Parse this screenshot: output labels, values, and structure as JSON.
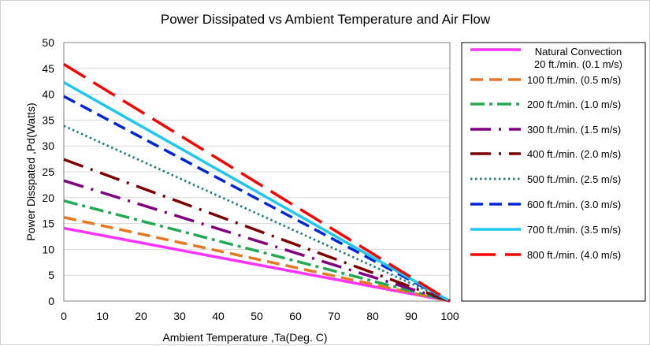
{
  "chart_data": {
    "type": "line",
    "title": "Power Dissipated vs Ambient Temperature and Air Flow",
    "xlabel": "Ambient Temperature ,Ta(Deg. C)",
    "ylabel": "Power Disspated ,Pd(Watts)",
    "xlim": [
      0,
      100
    ],
    "ylim": [
      0,
      50
    ],
    "xticks": [
      0,
      10,
      20,
      30,
      40,
      50,
      60,
      70,
      80,
      90,
      100
    ],
    "yticks": [
      0,
      5,
      10,
      15,
      20,
      25,
      30,
      35,
      40,
      45,
      50
    ],
    "grid": "horizontal",
    "legend_position": "right",
    "x": [
      0,
      100
    ],
    "series": [
      {
        "name": "Natural Convection",
        "name_line2": "20 ft./min. (0.1 m/s)",
        "values": [
          14.1,
          0
        ],
        "color": "#ff33ff",
        "style": "solid",
        "icon": "solid-line-icon"
      },
      {
        "name": "100 ft./min. (0.5 m/s)",
        "values": [
          16.2,
          0
        ],
        "color": "#e87722",
        "style": "dash",
        "icon": "dashed-line-icon"
      },
      {
        "name": "200 ft./min. (1.0 m/s)",
        "values": [
          19.4,
          0
        ],
        "color": "#22aa55",
        "style": "dashdot",
        "icon": "dash-dot-line-icon"
      },
      {
        "name": "300 ft./min. (1.5 m/s)",
        "values": [
          23.3,
          0
        ],
        "color": "#800080",
        "style": "longdashdot",
        "icon": "long-dash-dot-line-icon"
      },
      {
        "name": "400 ft./min. (2.0 m/s)",
        "values": [
          27.4,
          0
        ],
        "color": "#7f0000",
        "style": "longdashdot",
        "icon": "long-dash-dot-line-icon"
      },
      {
        "name": "500 ft./min. (2.5 m/s)",
        "values": [
          33.9,
          0
        ],
        "color": "#1f7f7f",
        "style": "dot",
        "icon": "dotted-line-icon"
      },
      {
        "name": "600 ft./min. (3.0 m/s)",
        "values": [
          39.6,
          0
        ],
        "color": "#0026d9",
        "style": "dash",
        "icon": "dashed-line-icon"
      },
      {
        "name": "700 ft./min. (3.5 m/s)",
        "values": [
          42.3,
          0
        ],
        "color": "#1ec8f0",
        "style": "solid",
        "icon": "solid-line-icon"
      },
      {
        "name": "800 ft./min. (4.0 m/s)",
        "values": [
          45.8,
          0
        ],
        "color": "#ff0000",
        "style": "longdash",
        "icon": "long-dashed-line-icon"
      }
    ]
  }
}
